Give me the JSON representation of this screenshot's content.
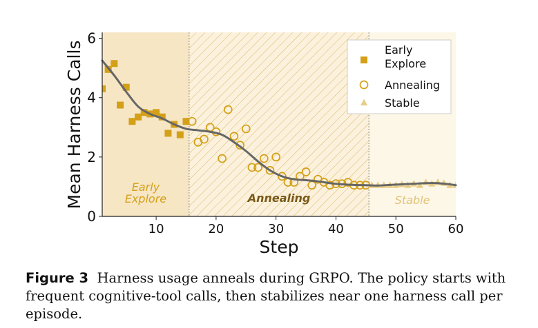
{
  "chart_data": {
    "type": "scatter",
    "xlabel": "Step",
    "ylabel": "Mean Harness Calls",
    "xlim": [
      1,
      60
    ],
    "ylim": [
      0,
      6.2
    ],
    "xticks": [
      10,
      20,
      30,
      40,
      50,
      60
    ],
    "yticks": [
      0,
      2,
      4,
      6
    ],
    "grid": false,
    "legend_position": "top-right",
    "regions": [
      {
        "label": "Early\nExplore",
        "x_start": 1,
        "x_end": 15.5,
        "color": "#f6e6c4",
        "label_color": "#d4a017"
      },
      {
        "label": "Annealing",
        "x_start": 15.5,
        "x_end": 45.5,
        "color": "#fbf1dc",
        "label_color": "#7a5a1a",
        "hatch": true
      },
      {
        "label": "Stable",
        "x_start": 45.5,
        "x_end": 60,
        "color": "#fdf7e8",
        "label_color": "#e2c277"
      }
    ],
    "series": [
      {
        "name": "Early\nExplore",
        "marker": "square",
        "color": "#d4a017",
        "points": [
          [
            1,
            4.3
          ],
          [
            2,
            4.95
          ],
          [
            3,
            5.15
          ],
          [
            4,
            3.75
          ],
          [
            5,
            4.35
          ],
          [
            6,
            3.2
          ],
          [
            7,
            3.35
          ],
          [
            8,
            3.5
          ],
          [
            9,
            3.45
          ],
          [
            10,
            3.5
          ],
          [
            11,
            3.35
          ],
          [
            12,
            2.8
          ],
          [
            13,
            3.1
          ],
          [
            14,
            2.75
          ],
          [
            15,
            3.2
          ]
        ]
      },
      {
        "name": "Annealing",
        "marker": "circle-open",
        "color": "#d4a017",
        "points": [
          [
            16,
            3.2
          ],
          [
            17,
            2.5
          ],
          [
            18,
            2.6
          ],
          [
            19,
            3.0
          ],
          [
            20,
            2.85
          ],
          [
            21,
            1.95
          ],
          [
            22,
            3.6
          ],
          [
            23,
            2.7
          ],
          [
            24,
            2.4
          ],
          [
            25,
            2.95
          ],
          [
            26,
            1.65
          ],
          [
            27,
            1.65
          ],
          [
            28,
            1.95
          ],
          [
            29,
            1.55
          ],
          [
            30,
            2.0
          ],
          [
            31,
            1.35
          ],
          [
            32,
            1.15
          ],
          [
            33,
            1.15
          ],
          [
            34,
            1.35
          ],
          [
            35,
            1.5
          ],
          [
            36,
            1.05
          ],
          [
            37,
            1.25
          ],
          [
            38,
            1.15
          ],
          [
            39,
            1.05
          ],
          [
            40,
            1.1
          ],
          [
            41,
            1.1
          ],
          [
            42,
            1.15
          ],
          [
            43,
            1.05
          ],
          [
            44,
            1.05
          ],
          [
            45,
            1.05
          ]
        ]
      },
      {
        "name": "Stable",
        "marker": "triangle",
        "color": "#e8cd85",
        "points": [
          [
            46,
            1.05
          ],
          [
            47,
            1.05
          ],
          [
            48,
            1.05
          ],
          [
            49,
            1.05
          ],
          [
            50,
            1.05
          ],
          [
            51,
            1.08
          ],
          [
            52,
            1.05
          ],
          [
            53,
            1.1
          ],
          [
            54,
            1.05
          ],
          [
            55,
            1.15
          ],
          [
            56,
            1.1
          ],
          [
            57,
            1.15
          ],
          [
            58,
            1.12
          ],
          [
            59,
            1.05
          ],
          [
            60,
            1.05
          ]
        ]
      }
    ],
    "trend_line": {
      "color": "#666666",
      "points": [
        [
          1,
          5.25
        ],
        [
          3,
          4.75
        ],
        [
          5,
          4.2
        ],
        [
          7,
          3.7
        ],
        [
          9,
          3.45
        ],
        [
          11,
          3.3
        ],
        [
          13,
          3.1
        ],
        [
          15,
          2.95
        ],
        [
          17,
          2.9
        ],
        [
          19,
          2.85
        ],
        [
          21,
          2.75
        ],
        [
          23,
          2.5
        ],
        [
          25,
          2.2
        ],
        [
          27,
          1.85
        ],
        [
          29,
          1.55
        ],
        [
          31,
          1.35
        ],
        [
          33,
          1.25
        ],
        [
          35,
          1.22
        ],
        [
          37,
          1.18
        ],
        [
          39,
          1.12
        ],
        [
          41,
          1.08
        ],
        [
          43,
          1.06
        ],
        [
          45,
          1.05
        ],
        [
          47,
          1.04
        ],
        [
          49,
          1.06
        ],
        [
          51,
          1.08
        ],
        [
          53,
          1.1
        ],
        [
          55,
          1.12
        ],
        [
          57,
          1.12
        ],
        [
          59,
          1.08
        ],
        [
          60,
          1.05
        ]
      ]
    }
  },
  "caption": {
    "label": "Figure 3",
    "text": "Harness usage anneals during GRPO. The policy starts with frequent cognitive-tool calls, then stabilizes near one harness call per episode."
  }
}
